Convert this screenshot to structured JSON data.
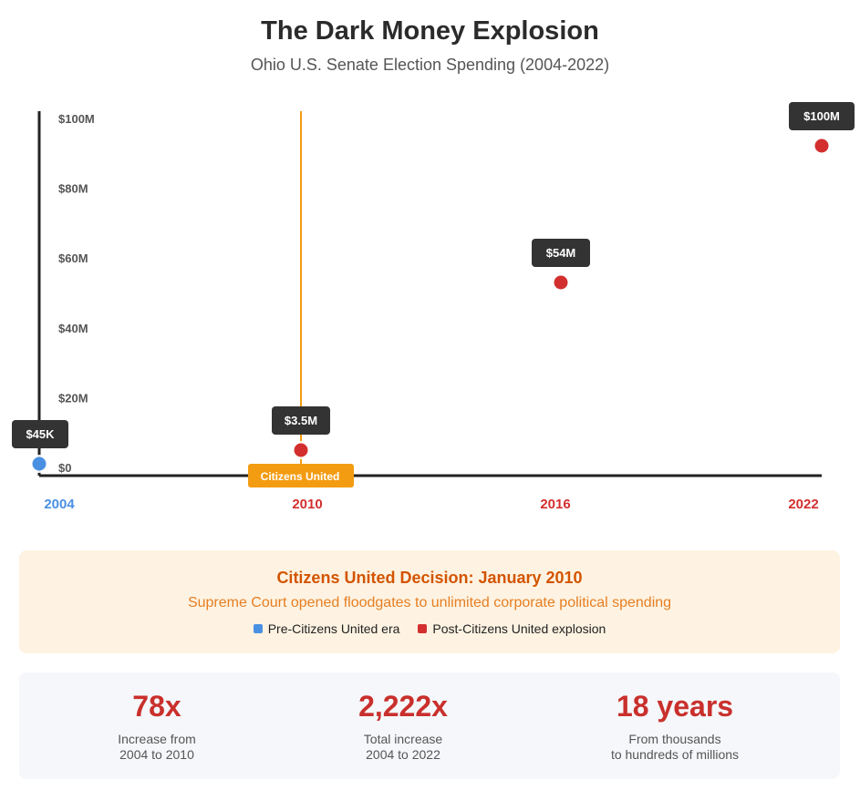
{
  "header": {
    "title": "The Dark Money Explosion",
    "subtitle": "Ohio U.S. Senate Election Spending (2004-2022)"
  },
  "colors": {
    "pre": "#4a90e2",
    "post": "#d32f2f",
    "marker_line": "#f39c12",
    "label_bg": "#333333"
  },
  "chart_data": {
    "type": "scatter",
    "x_categories": [
      "2004",
      "2010",
      "2016",
      "2022"
    ],
    "y_ticks": [
      "$0",
      "$20M",
      "$40M",
      "$60M",
      "$80M",
      "$100M"
    ],
    "ylim": [
      0,
      100
    ],
    "y_unit": "millions USD",
    "points": [
      {
        "x": "2004",
        "y": 0.045,
        "label": "$45K",
        "era": "pre"
      },
      {
        "x": "2010",
        "y": 3.5,
        "label": "$3.5M",
        "era": "post"
      },
      {
        "x": "2016",
        "y": 54,
        "label": "$54M",
        "era": "post"
      },
      {
        "x": "2022",
        "y": 100,
        "label": "$100M",
        "era": "post"
      }
    ],
    "event_marker": {
      "x": "2010",
      "label": "Citizens United"
    }
  },
  "info": {
    "title": "Citizens United Decision: January 2010",
    "subtitle": "Supreme Court opened floodgates to unlimited corporate political spending",
    "legend": [
      {
        "label": "Pre-Citizens United era",
        "color": "#4a90e2"
      },
      {
        "label": "Post-Citizens United explosion",
        "color": "#d32f2f"
      }
    ]
  },
  "stats": [
    {
      "value": "78x",
      "line1": "Increase from",
      "line2": "2004 to 2010"
    },
    {
      "value": "2,222x",
      "line1": "Total increase",
      "line2": "2004 to 2022"
    },
    {
      "value": "18 years",
      "line1": "From thousands",
      "line2": "to hundreds of millions"
    }
  ]
}
